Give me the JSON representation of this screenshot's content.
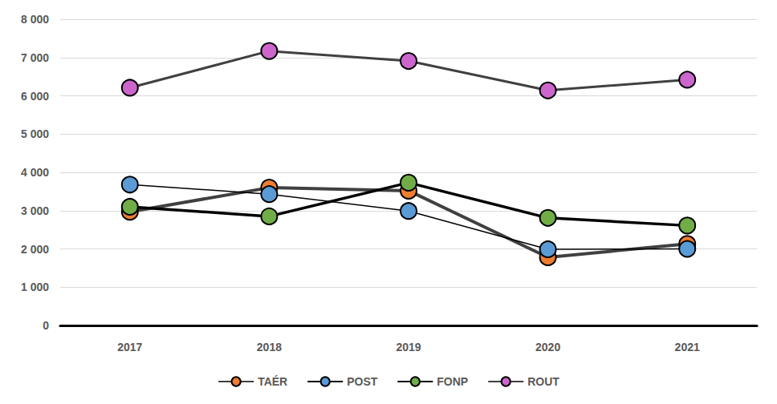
{
  "chart_data": {
    "type": "line",
    "categories": [
      "2017",
      "2018",
      "2019",
      "2020",
      "2021"
    ],
    "series": [
      {
        "name": "TAÉR",
        "color": "#ED7D31",
        "marker": "circle",
        "values": [
          2970,
          3600,
          3520,
          1780,
          2130
        ]
      },
      {
        "name": "POST",
        "color": "#5B9BD5",
        "marker": "circle",
        "values": [
          3680,
          3430,
          2990,
          1990,
          2000
        ]
      },
      {
        "name": "FONP",
        "color": "#70AD47",
        "marker": "circle",
        "values": [
          3100,
          2850,
          3730,
          2810,
          2610
        ]
      },
      {
        "name": "ROUT",
        "color": "#CC66CC",
        "marker": "circle",
        "values": [
          6210,
          7170,
          6910,
          6140,
          6420
        ]
      }
    ],
    "ylim": [
      0,
      8000
    ],
    "yticks": [
      0,
      {
        "value": 1000,
        "label": "1 000"
      },
      {
        "value": 2000,
        "label": "2 000"
      },
      {
        "value": 3000,
        "label": "3 000"
      },
      {
        "value": 4000,
        "label": "4 000"
      },
      {
        "value": 5000,
        "label": "5 000"
      },
      {
        "value": 6000,
        "label": "6 000"
      },
      {
        "value": 7000,
        "label": "7 000"
      },
      {
        "value": 8000,
        "label": "8 000"
      }
    ],
    "grid": true,
    "legend": "bottom"
  }
}
